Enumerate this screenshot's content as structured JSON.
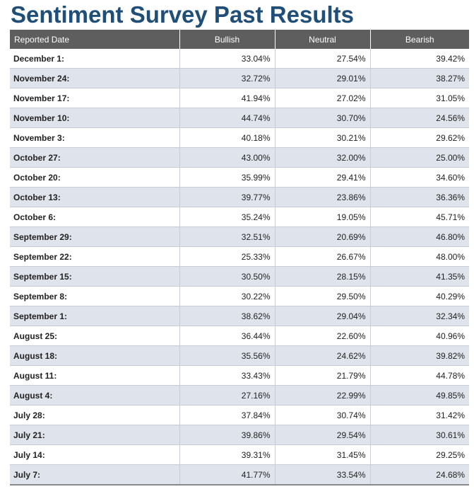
{
  "page": {
    "title": "Sentiment Survey Past Results"
  },
  "table": {
    "headers": {
      "date": "Reported Date",
      "bullish": "Bullish",
      "neutral": "Neutral",
      "bearish": "Bearish"
    },
    "rows": [
      {
        "date": "December 1:",
        "bullish": "33.04%",
        "neutral": "27.54%",
        "bearish": "39.42%"
      },
      {
        "date": "November 24:",
        "bullish": "32.72%",
        "neutral": "29.01%",
        "bearish": "38.27%"
      },
      {
        "date": "November 17:",
        "bullish": "41.94%",
        "neutral": "27.02%",
        "bearish": "31.05%"
      },
      {
        "date": "November 10:",
        "bullish": "44.74%",
        "neutral": "30.70%",
        "bearish": "24.56%"
      },
      {
        "date": "November 3:",
        "bullish": "40.18%",
        "neutral": "30.21%",
        "bearish": "29.62%"
      },
      {
        "date": "October 27:",
        "bullish": "43.00%",
        "neutral": "32.00%",
        "bearish": "25.00%"
      },
      {
        "date": "October 20:",
        "bullish": "35.99%",
        "neutral": "29.41%",
        "bearish": "34.60%"
      },
      {
        "date": "October 13:",
        "bullish": "39.77%",
        "neutral": "23.86%",
        "bearish": "36.36%"
      },
      {
        "date": "October 6:",
        "bullish": "35.24%",
        "neutral": "19.05%",
        "bearish": "45.71%"
      },
      {
        "date": "September 29:",
        "bullish": "32.51%",
        "neutral": "20.69%",
        "bearish": "46.80%"
      },
      {
        "date": "September 22:",
        "bullish": "25.33%",
        "neutral": "26.67%",
        "bearish": "48.00%"
      },
      {
        "date": "September 15:",
        "bullish": "30.50%",
        "neutral": "28.15%",
        "bearish": "41.35%"
      },
      {
        "date": "September 8:",
        "bullish": "30.22%",
        "neutral": "29.50%",
        "bearish": "40.29%"
      },
      {
        "date": "September 1:",
        "bullish": "38.62%",
        "neutral": "29.04%",
        "bearish": "32.34%"
      },
      {
        "date": "August 25:",
        "bullish": "36.44%",
        "neutral": "22.60%",
        "bearish": "40.96%"
      },
      {
        "date": "August 18:",
        "bullish": "35.56%",
        "neutral": "24.62%",
        "bearish": "39.82%"
      },
      {
        "date": "August 11:",
        "bullish": "33.43%",
        "neutral": "21.79%",
        "bearish": "44.78%"
      },
      {
        "date": "August 4:",
        "bullish": "27.16%",
        "neutral": "22.99%",
        "bearish": "49.85%"
      },
      {
        "date": "July 28:",
        "bullish": "37.84%",
        "neutral": "30.74%",
        "bearish": "31.42%"
      },
      {
        "date": "July 21:",
        "bullish": "39.86%",
        "neutral": "29.54%",
        "bearish": "30.61%"
      },
      {
        "date": "July 14:",
        "bullish": "39.31%",
        "neutral": "31.45%",
        "bearish": "29.25%"
      },
      {
        "date": "July 7:",
        "bullish": "41.77%",
        "neutral": "33.54%",
        "bearish": "24.68%"
      }
    ]
  },
  "colors": {
    "title": "#1f4e79",
    "header_bg": "#5e5e5e",
    "row_alt_bg": "#dfe3ec"
  }
}
